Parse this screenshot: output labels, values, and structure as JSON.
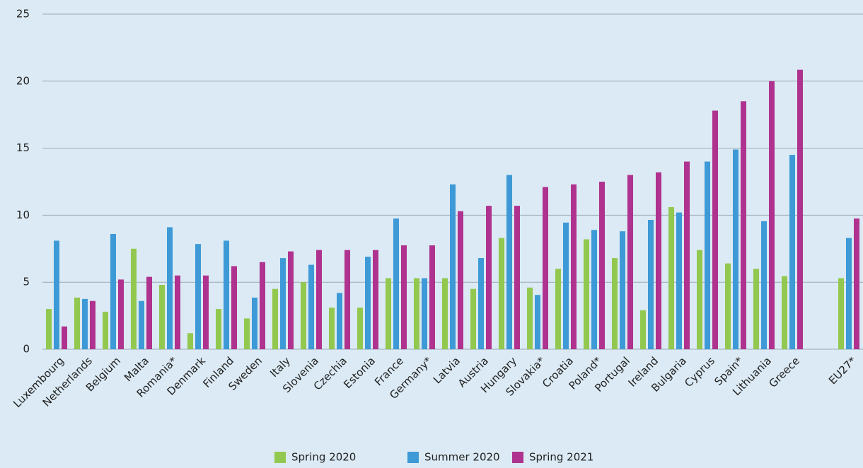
{
  "chart_data": {
    "type": "bar",
    "categories": [
      "Luxembourg",
      "Netherlands",
      "Belgium",
      "Malta",
      "Romania*",
      "Denmark",
      "Finland",
      "Sweden",
      "Italy",
      "Slovenia",
      "Czechia",
      "Estonia",
      "France",
      "Germany*",
      "Latvia",
      "Austria",
      "Hungary",
      "Slovakia*",
      "Croatia",
      "Poland*",
      "Portugal",
      "Ireland",
      "Bulgaria",
      "Cyprus",
      "Spain*",
      "Lithuania",
      "Greece",
      null,
      "EU27*"
    ],
    "series": [
      {
        "name": "Spring 2020",
        "color": "#92c84f",
        "values": [
          3.0,
          3.85,
          2.8,
          7.5,
          4.8,
          1.2,
          3.0,
          2.3,
          4.5,
          5.0,
          3.1,
          3.1,
          5.3,
          5.3,
          5.3,
          4.5,
          8.3,
          4.6,
          6.0,
          8.2,
          6.8,
          2.9,
          10.6,
          7.4,
          6.4,
          6.0,
          5.45,
          null,
          5.3
        ]
      },
      {
        "name": "Summer 2020",
        "color": "#3e9ad6",
        "values": [
          8.1,
          3.75,
          8.6,
          3.6,
          9.1,
          7.85,
          8.1,
          3.85,
          6.8,
          6.3,
          4.2,
          6.9,
          9.75,
          5.3,
          12.3,
          6.8,
          13.0,
          4.05,
          9.45,
          8.9,
          8.8,
          9.65,
          10.2,
          14.0,
          14.9,
          9.55,
          14.5,
          null,
          8.3
        ]
      },
      {
        "name": "Spring 2021",
        "color": "#b0328f",
        "values": [
          1.7,
          3.6,
          5.2,
          5.4,
          5.5,
          5.5,
          6.2,
          6.5,
          7.3,
          7.4,
          7.4,
          7.4,
          7.75,
          7.75,
          10.3,
          10.7,
          10.7,
          12.1,
          12.3,
          12.5,
          13.0,
          13.2,
          14.0,
          17.8,
          18.5,
          20.0,
          20.85,
          null,
          9.75
        ]
      }
    ],
    "ylim": [
      0,
      25
    ],
    "yticks": [
      0,
      5,
      10,
      15,
      20,
      25
    ],
    "grid": true
  }
}
